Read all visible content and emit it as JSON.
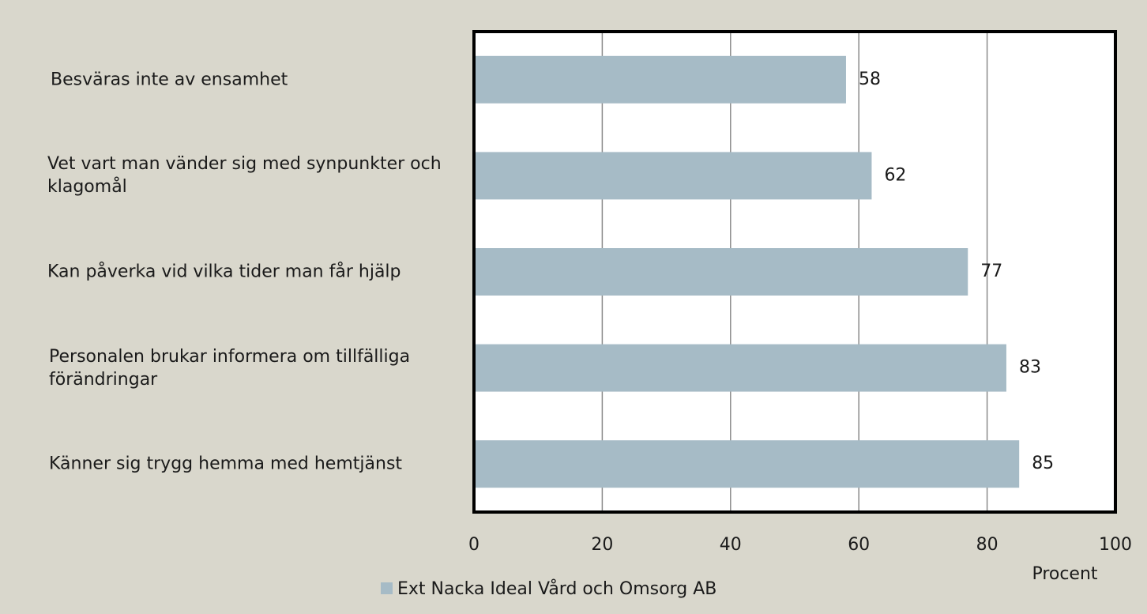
{
  "chart_data": {
    "type": "barh",
    "categories": [
      "Besväras inte av ensamhet",
      "Vet vart man vänder sig med synpunkter och klagomål",
      "Kan påverka vid vilka tider man får hjälp",
      "Personalen brukar informera om tillfälliga förändringar",
      "Känner sig trygg hemma med hemtjänst"
    ],
    "series": [
      {
        "name": "Ext Nacka Ideal Vård och Omsorg AB",
        "color": "#a6bbc6",
        "values": [
          58,
          62,
          77,
          83,
          85
        ]
      }
    ],
    "xlabel": "Procent",
    "xlim": [
      0,
      100
    ],
    "xticks": [
      0,
      20,
      40,
      60,
      80,
      100
    ],
    "grid": true
  }
}
